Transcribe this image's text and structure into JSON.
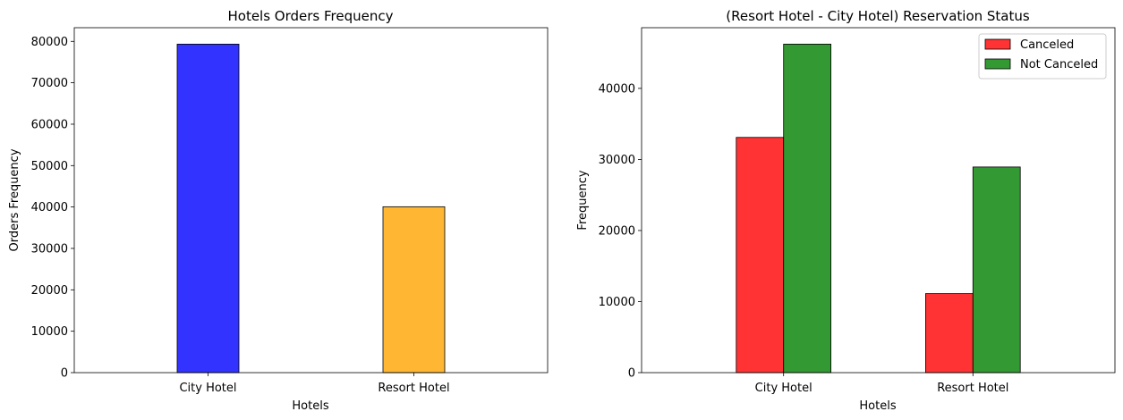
{
  "chart_data": [
    {
      "type": "bar",
      "title": "Hotels Orders Frequency",
      "xlabel": "Hotels",
      "ylabel": "Orders Frequency",
      "categories": [
        "City Hotel",
        "Resort Hotel"
      ],
      "values": [
        79330,
        40060
      ],
      "colors": [
        "#0000ff",
        "#ffa500"
      ],
      "ylim": [
        0,
        83300
      ],
      "yticks": [
        0,
        10000,
        20000,
        30000,
        40000,
        50000,
        60000,
        70000,
        80000
      ],
      "grid": false
    },
    {
      "type": "bar",
      "title": "(Resort Hotel - City Hotel) Reservation Status",
      "xlabel": "Hotels",
      "ylabel": "Frequency",
      "categories": [
        "City Hotel",
        "Resort Hotel"
      ],
      "series": [
        {
          "name": "Canceled",
          "values": [
            33102,
            11122
          ],
          "color": "#ff0000"
        },
        {
          "name": "Not Canceled",
          "values": [
            46228,
            28938
          ],
          "color": "#008000"
        }
      ],
      "ylim": [
        0,
        48540
      ],
      "yticks": [
        0,
        10000,
        20000,
        30000,
        40000
      ],
      "legend": "top-right",
      "grid": false
    }
  ]
}
